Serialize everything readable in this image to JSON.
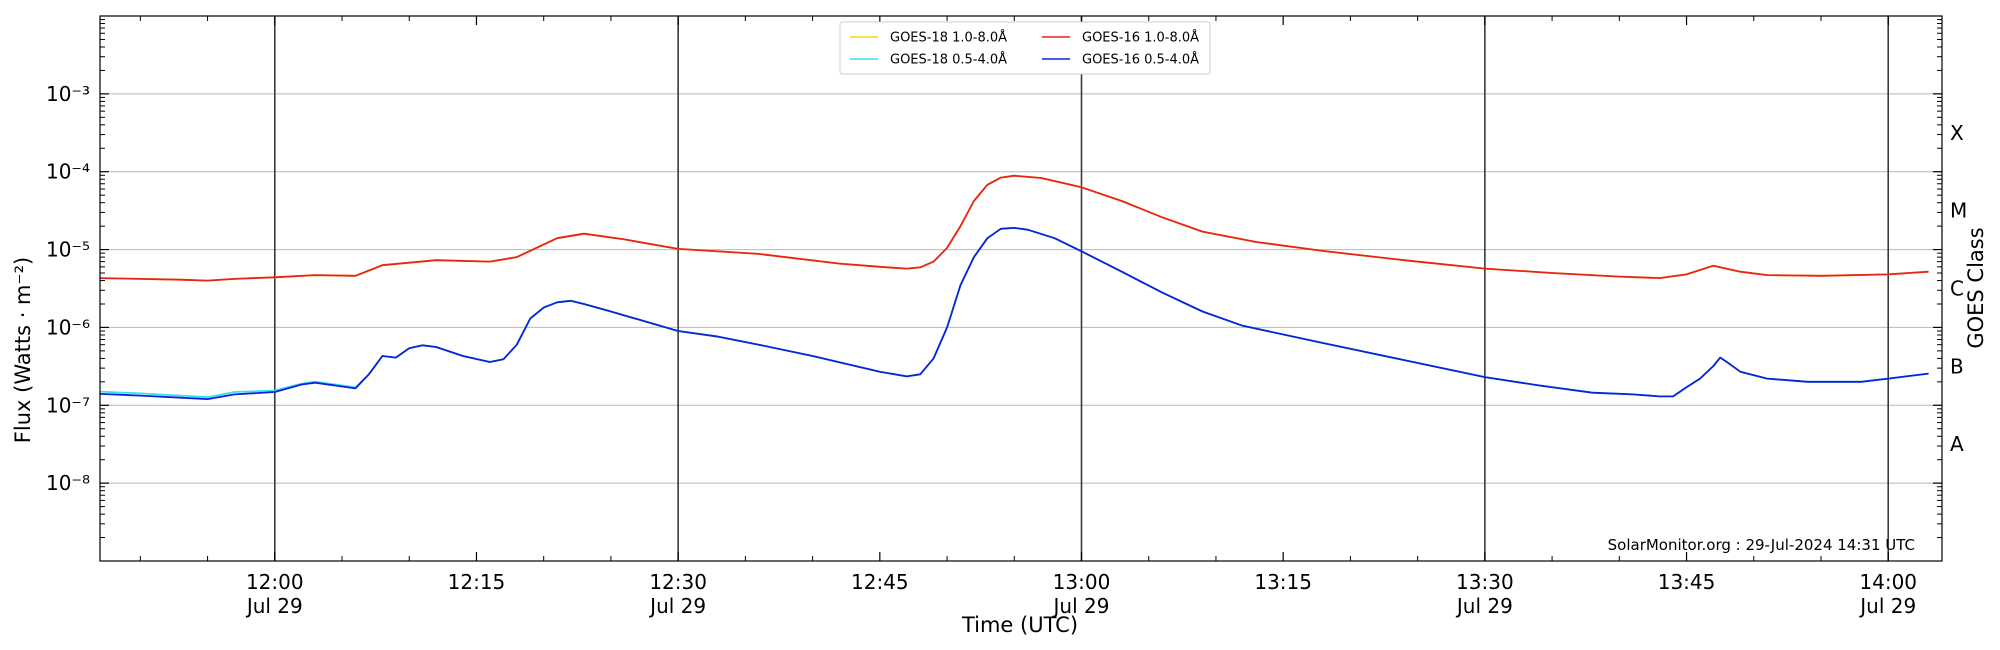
{
  "chart_data": {
    "type": "line",
    "xlabel": "Time (UTC)",
    "ylabel": "Flux (Watts · m⁻²)",
    "y2label": "GOES Class",
    "yscale": "log",
    "xlim": [
      "11:47",
      "14:04"
    ],
    "ylim": [
      1e-09,
      0.01
    ],
    "grid": "horizontal",
    "legend_position": "top-center",
    "footer": "SolarMonitor.org : 29-Jul-2024 14:31 UTC",
    "x_ticks": [
      {
        "time": "12:00",
        "label": "12:00",
        "sublabel": "Jul 29",
        "major": true
      },
      {
        "time": "12:15",
        "label": "12:15",
        "sublabel": "",
        "major": false
      },
      {
        "time": "12:30",
        "label": "12:30",
        "sublabel": "Jul 29",
        "major": true
      },
      {
        "time": "12:45",
        "label": "12:45",
        "sublabel": "",
        "major": false
      },
      {
        "time": "13:00",
        "label": "13:00",
        "sublabel": "Jul 29",
        "major": true
      },
      {
        "time": "13:15",
        "label": "13:15",
        "sublabel": "",
        "major": false
      },
      {
        "time": "13:30",
        "label": "13:30",
        "sublabel": "Jul 29",
        "major": true
      },
      {
        "time": "13:45",
        "label": "13:45",
        "sublabel": "",
        "major": false
      },
      {
        "time": "14:00",
        "label": "14:00",
        "sublabel": "Jul 29",
        "major": true
      }
    ],
    "y_ticks": [
      {
        "exp": -8,
        "label": "10⁻⁸"
      },
      {
        "exp": -7,
        "label": "10⁻⁷"
      },
      {
        "exp": -6,
        "label": "10⁻⁶"
      },
      {
        "exp": -5,
        "label": "10⁻⁵"
      },
      {
        "exp": -4,
        "label": "10⁻⁴"
      },
      {
        "exp": -3,
        "label": "10⁻³"
      }
    ],
    "goes_classes": [
      {
        "label": "A",
        "exp": -7.5
      },
      {
        "label": "B",
        "exp": -6.5
      },
      {
        "label": "C",
        "exp": -5.5
      },
      {
        "label": "M",
        "exp": -4.5
      },
      {
        "label": "X",
        "exp": -3.5
      }
    ],
    "series": [
      {
        "name": "GOES-18 1.0-8.0Å",
        "color": "#FFD700",
        "points": [
          [
            "11:47",
            4.3e-06
          ],
          [
            "11:53",
            4.1e-06
          ],
          [
            "11:55",
            4e-06
          ],
          [
            "11:57",
            4.2e-06
          ],
          [
            "12:00",
            4.4e-06
          ],
          [
            "12:03",
            4.7e-06
          ],
          [
            "12:06",
            4.6e-06
          ],
          [
            "12:08",
            6.3e-06
          ],
          [
            "12:12",
            7.3e-06
          ],
          [
            "12:16",
            7e-06
          ],
          [
            "12:18",
            8e-06
          ],
          [
            "12:21",
            1.4e-05
          ],
          [
            "12:23",
            1.6e-05
          ],
          [
            "12:26",
            1.35e-05
          ],
          [
            "12:30",
            1.02e-05
          ],
          [
            "12:36",
            8.8e-06
          ],
          [
            "12:42",
            6.6e-06
          ],
          [
            "12:45",
            6e-06
          ],
          [
            "12:47",
            5.7e-06
          ],
          [
            "12:48",
            5.9e-06
          ],
          [
            "12:49",
            7e-06
          ],
          [
            "12:50",
            1.05e-05
          ],
          [
            "12:51",
            2e-05
          ],
          [
            "12:52",
            4.2e-05
          ],
          [
            "12:53",
            6.8e-05
          ],
          [
            "12:54",
            8.4e-05
          ],
          [
            "12:55",
            8.9e-05
          ],
          [
            "12:57",
            8.3e-05
          ],
          [
            "13:00",
            6.3e-05
          ],
          [
            "13:03",
            4.2e-05
          ],
          [
            "13:06",
            2.6e-05
          ],
          [
            "13:09",
            1.7e-05
          ],
          [
            "13:13",
            1.25e-05
          ],
          [
            "13:18",
            9.6e-06
          ],
          [
            "13:24",
            7.3e-06
          ],
          [
            "13:30",
            5.7e-06
          ],
          [
            "13:35",
            5e-06
          ],
          [
            "13:40",
            4.5e-06
          ],
          [
            "13:43",
            4.3e-06
          ],
          [
            "13:45",
            4.8e-06
          ],
          [
            "13:47",
            6.2e-06
          ],
          [
            "13:49",
            5.2e-06
          ],
          [
            "13:51",
            4.7e-06
          ],
          [
            "13:55",
            4.6e-06
          ],
          [
            "14:00",
            4.8e-06
          ],
          [
            "14:03",
            5.2e-06
          ]
        ]
      },
      {
        "name": "GOES-16 1.0-8.0Å",
        "color": "#E8231A",
        "points": [
          [
            "11:47",
            4.3e-06
          ],
          [
            "11:53",
            4.1e-06
          ],
          [
            "11:55",
            4e-06
          ],
          [
            "11:57",
            4.2e-06
          ],
          [
            "12:00",
            4.4e-06
          ],
          [
            "12:03",
            4.7e-06
          ],
          [
            "12:06",
            4.6e-06
          ],
          [
            "12:08",
            6.3e-06
          ],
          [
            "12:12",
            7.3e-06
          ],
          [
            "12:16",
            7e-06
          ],
          [
            "12:18",
            8e-06
          ],
          [
            "12:21",
            1.4e-05
          ],
          [
            "12:23",
            1.6e-05
          ],
          [
            "12:26",
            1.35e-05
          ],
          [
            "12:30",
            1.02e-05
          ],
          [
            "12:36",
            8.8e-06
          ],
          [
            "12:42",
            6.6e-06
          ],
          [
            "12:45",
            6e-06
          ],
          [
            "12:47",
            5.7e-06
          ],
          [
            "12:48",
            5.9e-06
          ],
          [
            "12:49",
            7e-06
          ],
          [
            "12:50",
            1.05e-05
          ],
          [
            "12:51",
            2e-05
          ],
          [
            "12:52",
            4.2e-05
          ],
          [
            "12:53",
            6.8e-05
          ],
          [
            "12:54",
            8.4e-05
          ],
          [
            "12:55",
            8.9e-05
          ],
          [
            "12:57",
            8.3e-05
          ],
          [
            "13:00",
            6.3e-05
          ],
          [
            "13:03",
            4.2e-05
          ],
          [
            "13:06",
            2.6e-05
          ],
          [
            "13:09",
            1.7e-05
          ],
          [
            "13:13",
            1.25e-05
          ],
          [
            "13:18",
            9.6e-06
          ],
          [
            "13:24",
            7.3e-06
          ],
          [
            "13:30",
            5.7e-06
          ],
          [
            "13:35",
            5e-06
          ],
          [
            "13:40",
            4.5e-06
          ],
          [
            "13:43",
            4.3e-06
          ],
          [
            "13:45",
            4.8e-06
          ],
          [
            "13:47",
            6.2e-06
          ],
          [
            "13:49",
            5.2e-06
          ],
          [
            "13:51",
            4.7e-06
          ],
          [
            "13:55",
            4.6e-06
          ],
          [
            "14:00",
            4.8e-06
          ],
          [
            "14:03",
            5.2e-06
          ]
        ]
      },
      {
        "name": "GOES-18 0.5-4.0Å",
        "color": "#35E0F0",
        "points": [
          [
            "11:47",
            1.5e-07
          ],
          [
            "11:50",
            1.42e-07
          ],
          [
            "11:53",
            1.33e-07
          ],
          [
            "11:55",
            1.27e-07
          ],
          [
            "11:57",
            1.48e-07
          ],
          [
            "12:00",
            1.55e-07
          ],
          [
            "12:02",
            1.9e-07
          ],
          [
            "12:03",
            2e-07
          ],
          [
            "12:06",
            1.7e-07
          ],
          [
            "12:07",
            2.5e-07
          ],
          [
            "12:08",
            4.3e-07
          ],
          [
            "12:09",
            4.1e-07
          ],
          [
            "12:10",
            5.4e-07
          ],
          [
            "12:11",
            5.9e-07
          ],
          [
            "12:12",
            5.6e-07
          ],
          [
            "12:14",
            4.3e-07
          ],
          [
            "12:16",
            3.6e-07
          ],
          [
            "12:17",
            3.9e-07
          ],
          [
            "12:18",
            6e-07
          ],
          [
            "12:19",
            1.3e-06
          ],
          [
            "12:20",
            1.8e-06
          ],
          [
            "12:21",
            2.1e-06
          ],
          [
            "12:22",
            2.2e-06
          ],
          [
            "12:23",
            2e-06
          ],
          [
            "12:25",
            1.6e-06
          ],
          [
            "12:30",
            9e-07
          ],
          [
            "12:33",
            7.6e-07
          ],
          [
            "12:36",
            6e-07
          ],
          [
            "12:40",
            4.3e-07
          ],
          [
            "12:45",
            2.7e-07
          ],
          [
            "12:47",
            2.35e-07
          ],
          [
            "12:48",
            2.5e-07
          ],
          [
            "12:49",
            4e-07
          ],
          [
            "12:50",
            1e-06
          ],
          [
            "12:51",
            3.5e-06
          ],
          [
            "12:52",
            8e-06
          ],
          [
            "12:53",
            1.4e-05
          ],
          [
            "12:54",
            1.85e-05
          ],
          [
            "12:55",
            1.9e-05
          ],
          [
            "12:56",
            1.8e-05
          ],
          [
            "12:58",
            1.4e-05
          ],
          [
            "13:00",
            9.5e-06
          ],
          [
            "13:03",
            5.2e-06
          ],
          [
            "13:06",
            2.8e-06
          ],
          [
            "13:09",
            1.6e-06
          ],
          [
            "13:12",
            1.05e-06
          ],
          [
            "13:18",
            6.3e-07
          ],
          [
            "13:24",
            3.8e-07
          ],
          [
            "13:30",
            2.3e-07
          ],
          [
            "13:34",
            1.8e-07
          ],
          [
            "13:38",
            1.45e-07
          ],
          [
            "13:41",
            1.38e-07
          ],
          [
            "13:43",
            1.3e-07
          ],
          [
            "13:44",
            1.3e-07
          ],
          [
            "13:45",
            1.7e-07
          ],
          [
            "13:46",
            2.2e-07
          ],
          [
            "13:47",
            3.2e-07
          ],
          [
            "13:47.5",
            4.1e-07
          ],
          [
            "13:48",
            3.6e-07
          ],
          [
            "13:49",
            2.7e-07
          ],
          [
            "13:51",
            2.2e-07
          ],
          [
            "13:54",
            2e-07
          ],
          [
            "13:58",
            2e-07
          ],
          [
            "14:00",
            2.2e-07
          ],
          [
            "14:03",
            2.55e-07
          ]
        ]
      },
      {
        "name": "GOES-16 0.5-4.0Å",
        "color": "#0A23D8",
        "points": [
          [
            "11:47",
            1.4e-07
          ],
          [
            "11:50",
            1.33e-07
          ],
          [
            "11:53",
            1.25e-07
          ],
          [
            "11:55",
            1.2e-07
          ],
          [
            "11:57",
            1.38e-07
          ],
          [
            "12:00",
            1.48e-07
          ],
          [
            "12:02",
            1.85e-07
          ],
          [
            "12:03",
            1.95e-07
          ],
          [
            "12:06",
            1.65e-07
          ],
          [
            "12:07",
            2.5e-07
          ],
          [
            "12:08",
            4.3e-07
          ],
          [
            "12:09",
            4.1e-07
          ],
          [
            "12:10",
            5.4e-07
          ],
          [
            "12:11",
            5.9e-07
          ],
          [
            "12:12",
            5.6e-07
          ],
          [
            "12:14",
            4.3e-07
          ],
          [
            "12:16",
            3.6e-07
          ],
          [
            "12:17",
            3.9e-07
          ],
          [
            "12:18",
            6e-07
          ],
          [
            "12:19",
            1.3e-06
          ],
          [
            "12:20",
            1.8e-06
          ],
          [
            "12:21",
            2.1e-06
          ],
          [
            "12:22",
            2.2e-06
          ],
          [
            "12:23",
            2e-06
          ],
          [
            "12:25",
            1.6e-06
          ],
          [
            "12:30",
            9e-07
          ],
          [
            "12:33",
            7.6e-07
          ],
          [
            "12:36",
            6e-07
          ],
          [
            "12:40",
            4.3e-07
          ],
          [
            "12:45",
            2.7e-07
          ],
          [
            "12:47",
            2.35e-07
          ],
          [
            "12:48",
            2.5e-07
          ],
          [
            "12:49",
            4e-07
          ],
          [
            "12:50",
            1e-06
          ],
          [
            "12:51",
            3.5e-06
          ],
          [
            "12:52",
            8e-06
          ],
          [
            "12:53",
            1.4e-05
          ],
          [
            "12:54",
            1.85e-05
          ],
          [
            "12:55",
            1.9e-05
          ],
          [
            "12:56",
            1.8e-05
          ],
          [
            "12:58",
            1.4e-05
          ],
          [
            "13:00",
            9.5e-06
          ],
          [
            "13:03",
            5.2e-06
          ],
          [
            "13:06",
            2.8e-06
          ],
          [
            "13:09",
            1.6e-06
          ],
          [
            "13:12",
            1.05e-06
          ],
          [
            "13:18",
            6.3e-07
          ],
          [
            "13:24",
            3.8e-07
          ],
          [
            "13:30",
            2.3e-07
          ],
          [
            "13:34",
            1.8e-07
          ],
          [
            "13:38",
            1.45e-07
          ],
          [
            "13:41",
            1.38e-07
          ],
          [
            "13:43",
            1.3e-07
          ],
          [
            "13:44",
            1.3e-07
          ],
          [
            "13:45",
            1.7e-07
          ],
          [
            "13:46",
            2.2e-07
          ],
          [
            "13:47",
            3.2e-07
          ],
          [
            "13:47.5",
            4.1e-07
          ],
          [
            "13:48",
            3.6e-07
          ],
          [
            "13:49",
            2.7e-07
          ],
          [
            "13:51",
            2.2e-07
          ],
          [
            "13:54",
            2e-07
          ],
          [
            "13:58",
            2e-07
          ],
          [
            "14:00",
            2.2e-07
          ],
          [
            "14:03",
            2.55e-07
          ]
        ]
      }
    ]
  }
}
